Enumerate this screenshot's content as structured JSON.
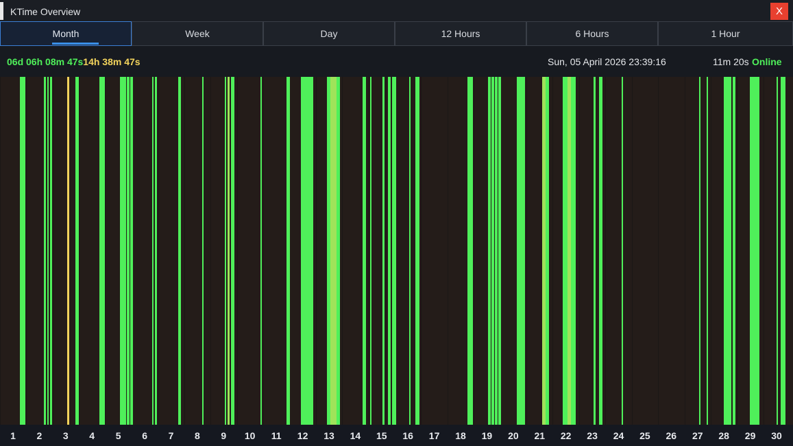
{
  "window": {
    "title": "KTime Overview",
    "close_label": "X"
  },
  "tabs": [
    {
      "label": "Month",
      "active": true
    },
    {
      "label": "Week",
      "active": false
    },
    {
      "label": "Day",
      "active": false
    },
    {
      "label": "12 Hours",
      "active": false
    },
    {
      "label": "6 Hours",
      "active": false
    },
    {
      "label": "1 Hour",
      "active": false
    }
  ],
  "status": {
    "online_total": "06d 06h 08m 47s",
    "idle_total": "14h 38m 47s",
    "datetime": "Sun, 05 April 2026 23:39:16",
    "session_duration": "11m 20s",
    "state": "Online"
  },
  "colors": {
    "online": "#4ff05a",
    "idle": "#f3d45c",
    "partial": "#9fe35a",
    "background": "#241c19"
  },
  "chart_data": {
    "type": "timeline",
    "x_range_days": [
      1,
      30
    ],
    "x_ticks": [
      "1",
      "2",
      "3",
      "4",
      "5",
      "6",
      "7",
      "8",
      "9",
      "10",
      "11",
      "12",
      "13",
      "14",
      "15",
      "16",
      "17",
      "18",
      "19",
      "20",
      "21",
      "22",
      "23",
      "24",
      "25",
      "26",
      "27",
      "28",
      "29",
      "30"
    ],
    "segment_units": "day of month",
    "segments": [
      {
        "start": 1.26,
        "end": 1.47,
        "state": "online"
      },
      {
        "start": 2.17,
        "end": 2.26,
        "state": "online"
      },
      {
        "start": 2.31,
        "end": 2.36,
        "state": "online"
      },
      {
        "start": 2.4,
        "end": 2.49,
        "state": "online"
      },
      {
        "start": 3.05,
        "end": 3.15,
        "state": "idle"
      },
      {
        "start": 3.38,
        "end": 3.49,
        "state": "online"
      },
      {
        "start": 4.27,
        "end": 4.48,
        "state": "online"
      },
      {
        "start": 5.06,
        "end": 5.29,
        "state": "online"
      },
      {
        "start": 5.33,
        "end": 5.42,
        "state": "online"
      },
      {
        "start": 5.46,
        "end": 5.57,
        "state": "online"
      },
      {
        "start": 6.29,
        "end": 6.34,
        "state": "online"
      },
      {
        "start": 6.38,
        "end": 6.47,
        "state": "online"
      },
      {
        "start": 7.26,
        "end": 7.37,
        "state": "online"
      },
      {
        "start": 8.19,
        "end": 8.23,
        "state": "online"
      },
      {
        "start": 9.05,
        "end": 9.1,
        "state": "online"
      },
      {
        "start": 9.14,
        "end": 9.23,
        "state": "partial"
      },
      {
        "start": 9.27,
        "end": 9.4,
        "state": "online"
      },
      {
        "start": 10.39,
        "end": 10.43,
        "state": "online"
      },
      {
        "start": 11.39,
        "end": 11.52,
        "state": "online"
      },
      {
        "start": 11.92,
        "end": 12.4,
        "state": "online"
      },
      {
        "start": 12.92,
        "end": 13.05,
        "state": "online"
      },
      {
        "start": 13.05,
        "end": 13.28,
        "state": "partial"
      },
      {
        "start": 13.28,
        "end": 13.41,
        "state": "online"
      },
      {
        "start": 14.28,
        "end": 14.41,
        "state": "online"
      },
      {
        "start": 14.55,
        "end": 14.6,
        "state": "online"
      },
      {
        "start": 15.03,
        "end": 15.12,
        "state": "online"
      },
      {
        "start": 15.25,
        "end": 15.34,
        "state": "online"
      },
      {
        "start": 15.4,
        "end": 15.56,
        "state": "online"
      },
      {
        "start": 16.05,
        "end": 16.1,
        "state": "online"
      },
      {
        "start": 16.28,
        "end": 16.43,
        "state": "online"
      },
      {
        "start": 18.27,
        "end": 18.48,
        "state": "online"
      },
      {
        "start": 19.05,
        "end": 19.14,
        "state": "online"
      },
      {
        "start": 19.18,
        "end": 19.28,
        "state": "online"
      },
      {
        "start": 19.31,
        "end": 19.4,
        "state": "online"
      },
      {
        "start": 19.44,
        "end": 19.53,
        "state": "online"
      },
      {
        "start": 20.14,
        "end": 20.46,
        "state": "online"
      },
      {
        "start": 21.1,
        "end": 21.23,
        "state": "partial"
      },
      {
        "start": 21.23,
        "end": 21.36,
        "state": "online"
      },
      {
        "start": 21.87,
        "end": 22.05,
        "state": "online"
      },
      {
        "start": 22.05,
        "end": 22.19,
        "state": "partial"
      },
      {
        "start": 22.19,
        "end": 22.37,
        "state": "online"
      },
      {
        "start": 23.04,
        "end": 23.13,
        "state": "online"
      },
      {
        "start": 23.26,
        "end": 23.39,
        "state": "online"
      },
      {
        "start": 24.12,
        "end": 24.17,
        "state": "online"
      },
      {
        "start": 27.07,
        "end": 27.12,
        "state": "online"
      },
      {
        "start": 27.35,
        "end": 27.4,
        "state": "online"
      },
      {
        "start": 28.0,
        "end": 28.28,
        "state": "online"
      },
      {
        "start": 28.32,
        "end": 28.44,
        "state": "online"
      },
      {
        "start": 28.99,
        "end": 29.36,
        "state": "online"
      },
      {
        "start": 29.99,
        "end": 30.05,
        "state": "online"
      },
      {
        "start": 30.16,
        "end": 30.34,
        "state": "online"
      }
    ]
  }
}
